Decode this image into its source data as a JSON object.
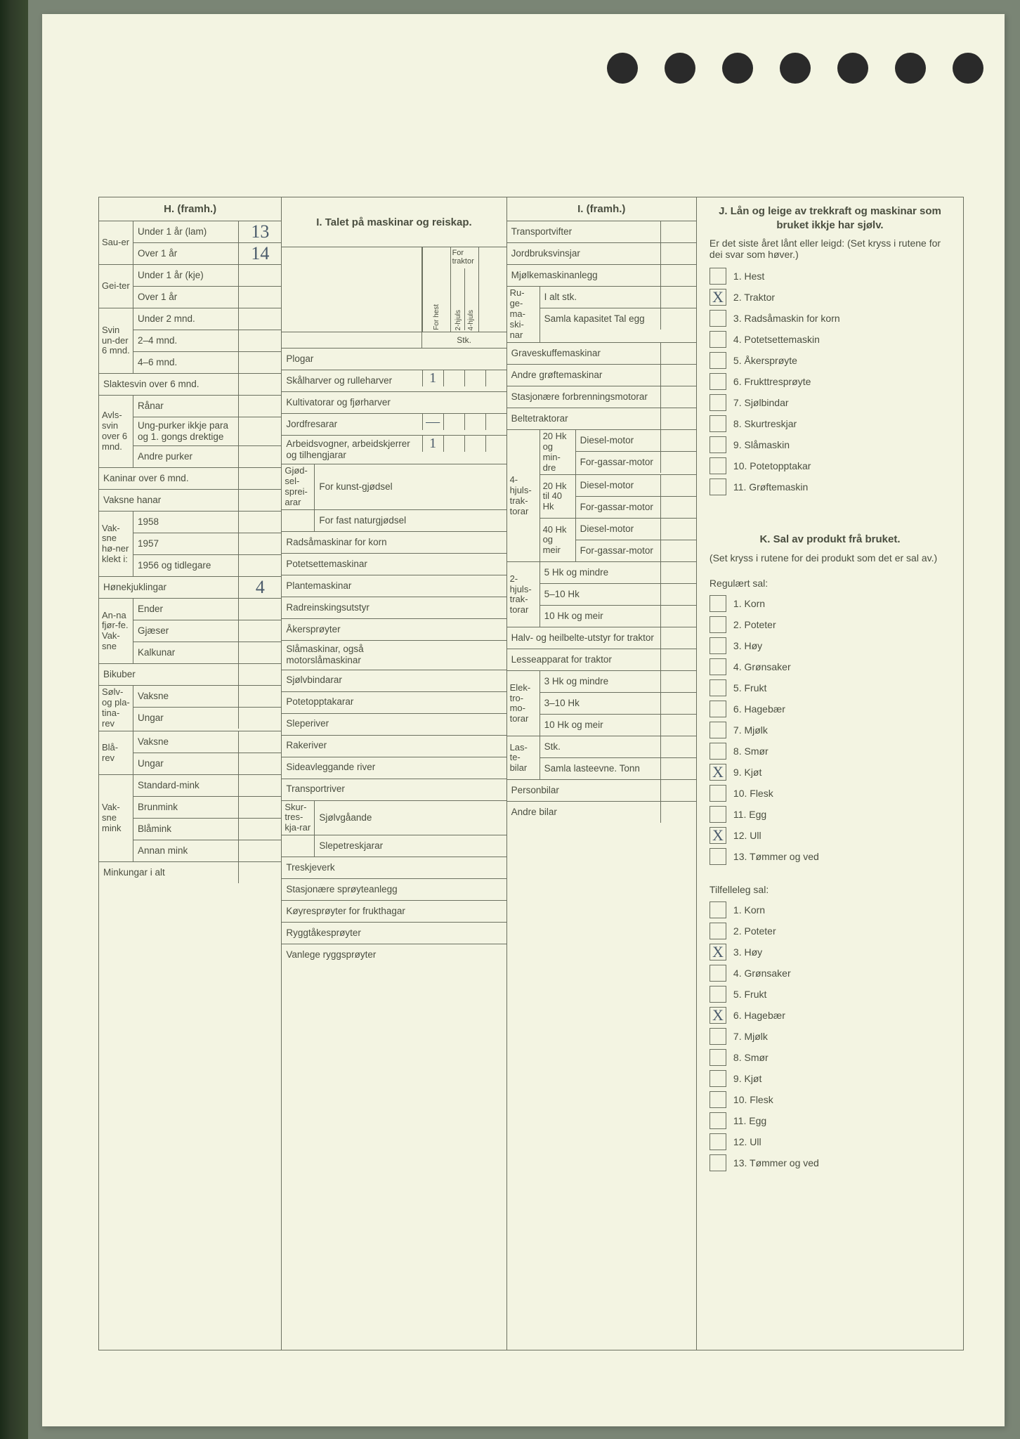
{
  "colors": {
    "paper": "#f3f4e2",
    "border": "#6b7060",
    "text": "#4a4e40",
    "handwriting": "#4a5a6a",
    "outer_bg": "#7a8575"
  },
  "H": {
    "header": "H. (framh.)",
    "groups": [
      {
        "side": "Sau-er",
        "rows": [
          {
            "label": "Under 1 år (lam)",
            "value": "13"
          },
          {
            "label": "Over 1 år",
            "value": "14"
          }
        ]
      },
      {
        "side": "Gei-ter",
        "rows": [
          {
            "label": "Under 1 år (kje)",
            "value": ""
          },
          {
            "label": "Over 1 år",
            "value": ""
          }
        ]
      },
      {
        "side": "Svin un-der 6 mnd.",
        "rows": [
          {
            "label": "Under 2 mnd.",
            "value": ""
          },
          {
            "label": "2–4 mnd.",
            "value": ""
          },
          {
            "label": "4–6 mnd.",
            "value": ""
          }
        ]
      },
      {
        "side": "",
        "rows": [
          {
            "label": "Slaktesvin over 6 mnd.",
            "value": "",
            "full": true
          }
        ]
      },
      {
        "side": "Avls-svin over 6 mnd.",
        "rows": [
          {
            "label": "Rånar",
            "value": ""
          },
          {
            "label": "Ung-purker ikkje para og 1. gongs drektige",
            "value": ""
          },
          {
            "label": "Andre purker",
            "value": ""
          }
        ]
      },
      {
        "side": "",
        "rows": [
          {
            "label": "Kaninar over 6 mnd.",
            "value": "",
            "full": true
          },
          {
            "label": "Vaksne hanar",
            "value": "",
            "full": true
          }
        ]
      },
      {
        "side": "Vak-sne hø-ner klekt i:",
        "rows": [
          {
            "label": "1958",
            "value": ""
          },
          {
            "label": "1957",
            "value": ""
          },
          {
            "label": "1956 og tidlegare",
            "value": ""
          }
        ]
      },
      {
        "side": "",
        "rows": [
          {
            "label": "Hønekjuklingar",
            "value": "4",
            "full": true
          }
        ]
      },
      {
        "side": "An-na fjør-fe. Vak-sne",
        "rows": [
          {
            "label": "Ender",
            "value": ""
          },
          {
            "label": "Gjæser",
            "value": ""
          },
          {
            "label": "Kalkunar",
            "value": ""
          }
        ]
      },
      {
        "side": "",
        "rows": [
          {
            "label": "Bikuber",
            "value": "",
            "full": true
          }
        ]
      },
      {
        "side": "Sølv- og pla-tina-rev",
        "rows": [
          {
            "label": "Vaksne",
            "value": ""
          },
          {
            "label": "Ungar",
            "value": ""
          }
        ]
      },
      {
        "side": "Blå-rev",
        "rows": [
          {
            "label": "Vaksne",
            "value": ""
          },
          {
            "label": "Ungar",
            "value": ""
          }
        ]
      },
      {
        "side": "Vak-sne mink",
        "rows": [
          {
            "label": "Standard-mink",
            "value": ""
          },
          {
            "label": "Brunmink",
            "value": ""
          },
          {
            "label": "Blåmink",
            "value": ""
          },
          {
            "label": "Annan mink",
            "value": ""
          }
        ]
      },
      {
        "side": "",
        "rows": [
          {
            "label": "Minkungar i alt",
            "value": "",
            "full": true
          }
        ]
      }
    ]
  },
  "I": {
    "header": "I. Talet på maskinar og reiskap.",
    "col_headers": {
      "group": "For traktor",
      "c1": "For hest",
      "c2": "2-hjuls",
      "c3": "4-hjuls"
    },
    "stk_label": "Stk.",
    "rows": [
      {
        "label": "Plogar",
        "v": [
          "",
          "",
          "",
          ""
        ]
      },
      {
        "label": "Skålharver og rulleharver",
        "v": [
          "1",
          "",
          "",
          ""
        ]
      },
      {
        "label": "Kultivatorar og fjørharver",
        "v": [
          "",
          "",
          "",
          ""
        ]
      },
      {
        "label": "Jordfresarar",
        "v": [
          "—",
          "",
          "",
          ""
        ]
      },
      {
        "label": "Arbeidsvogner, arbeidskjerrer og tilhengjarar",
        "v": [
          "1",
          "",
          "",
          ""
        ]
      },
      {
        "side": "Gjød-sel-sprei-arar",
        "label": "For kunst-gjødsel",
        "v": [
          "",
          "",
          "",
          ""
        ]
      },
      {
        "label": "For fast naturgjødsel",
        "v": [
          "",
          "",
          "",
          ""
        ],
        "cont": true
      },
      {
        "label": "Radsåmaskinar for korn",
        "v": [
          "",
          "",
          "",
          ""
        ]
      },
      {
        "label": "Potetsettemaskinar",
        "v": [
          "",
          "",
          "",
          ""
        ]
      },
      {
        "label": "Plantemaskinar",
        "v": [
          "",
          "",
          "",
          ""
        ]
      },
      {
        "label": "Radreinskingsutstyr",
        "v": [
          "",
          "",
          "",
          ""
        ]
      },
      {
        "label": "Åkersprøyter",
        "v": [
          "",
          "",
          "",
          ""
        ]
      },
      {
        "label": "Slåmaskinar, også motorslåmaskinar",
        "v": [
          "",
          "",
          "",
          ""
        ]
      },
      {
        "label": "Sjølvbindarar",
        "v": [
          "",
          "",
          "",
          ""
        ]
      },
      {
        "label": "Potetopptakarar",
        "v": [
          "",
          "",
          "",
          ""
        ]
      },
      {
        "label": "Sleperiver",
        "v": [
          "",
          "",
          "",
          ""
        ]
      },
      {
        "label": "Rakeriver",
        "v": [
          "",
          "",
          "",
          ""
        ]
      },
      {
        "label": "Sideavleggande river",
        "v": [
          "",
          "",
          "",
          ""
        ]
      },
      {
        "label": "Transportriver",
        "v": [
          "",
          "",
          "",
          ""
        ]
      },
      {
        "side": "Skur-tres-kja-rar",
        "label": "Sjølvgåande",
        "v": [
          "",
          "",
          "",
          ""
        ]
      },
      {
        "label": "Slepetreskjarar",
        "v": [
          "",
          "",
          "",
          ""
        ],
        "cont": true
      },
      {
        "label": "Treskjeverk",
        "v": [
          "",
          "",
          "",
          ""
        ]
      },
      {
        "label": "Stasjonære sprøyteanlegg",
        "v": [
          "",
          "",
          "",
          ""
        ]
      },
      {
        "label": "Køyresprøyter for frukthagar",
        "v": [
          "",
          "",
          "",
          ""
        ]
      },
      {
        "label": "Ryggtåkesprøyter",
        "v": [
          "",
          "",
          "",
          ""
        ]
      },
      {
        "label": "Vanlege ryggsprøyter",
        "v": [
          "",
          "",
          "",
          ""
        ]
      }
    ]
  },
  "I2": {
    "header": "I. (framh.)",
    "simple": [
      {
        "label": "Transportvifter",
        "v": ""
      },
      {
        "label": "Jordbruksvinsjar",
        "v": ""
      },
      {
        "label": "Mjølkemaskinanlegg",
        "v": ""
      }
    ],
    "ruge": {
      "side": "Ru-ge-ma-ski-nar",
      "rows": [
        {
          "label": "I alt stk.",
          "v": ""
        },
        {
          "label": "Samla kapasitet Tal egg",
          "v": ""
        }
      ]
    },
    "mid": [
      {
        "label": "Graveskuffemaskinar",
        "v": ""
      },
      {
        "label": "Andre grøftemaskinar",
        "v": ""
      },
      {
        "label": "Stasjonære forbrenningsmotorar",
        "v": ""
      },
      {
        "label": "Beltetraktorar",
        "v": ""
      }
    ],
    "traktor4": {
      "side": "4-hjuls-trak-torar",
      "groups": [
        {
          "sub": "20 Hk og min-dre",
          "rows": [
            "Diesel-motor",
            "For-gassar-motor"
          ]
        },
        {
          "sub": "20 Hk til 40 Hk",
          "rows": [
            "Diesel-motor",
            "For-gassar-motor"
          ]
        },
        {
          "sub": "40 Hk og meir",
          "rows": [
            "Diesel-motor",
            "For-gassar-motor"
          ]
        }
      ]
    },
    "traktor2": {
      "side": "2-hjuls-trak-torar",
      "rows": [
        "5 Hk og mindre",
        "5–10 Hk",
        "10 Hk og meir"
      ]
    },
    "bottom": [
      {
        "label": "Halv- og heilbelte-utstyr for traktor",
        "v": ""
      },
      {
        "label": "Lesseapparat for traktor",
        "v": ""
      }
    ],
    "elektro": {
      "side": "Elek-tro-mo-torar",
      "rows": [
        "3 Hk og mindre",
        "3–10 Hk",
        "10 Hk og meir"
      ]
    },
    "laste": {
      "side": "Las-te-bilar",
      "rows": [
        "Stk.",
        "Samla lasteevne. Tonn"
      ]
    },
    "last": [
      {
        "label": "Personbilar",
        "v": ""
      },
      {
        "label": "Andre bilar",
        "v": ""
      }
    ]
  },
  "J": {
    "title": "J. Lån og leige av trekkraft og maskinar som bruket ikkje har sjølv.",
    "sub": "Er det siste året lånt eller leigd: (Set kryss i rutene for dei svar som høver.)",
    "items": [
      {
        "n": "1.",
        "label": "Hest",
        "x": false
      },
      {
        "n": "2.",
        "label": "Traktor",
        "x": true
      },
      {
        "n": "3.",
        "label": "Radsåmaskin for korn",
        "x": false
      },
      {
        "n": "4.",
        "label": "Potetsettemaskin",
        "x": false
      },
      {
        "n": "5.",
        "label": "Åkersprøyte",
        "x": false
      },
      {
        "n": "6.",
        "label": "Frukttresprøyte",
        "x": false
      },
      {
        "n": "7.",
        "label": "Sjølbindar",
        "x": false
      },
      {
        "n": "8.",
        "label": "Skurtreskjar",
        "x": false
      },
      {
        "n": "9.",
        "label": "Slåmaskin",
        "x": false
      },
      {
        "n": "10.",
        "label": "Potetopptakar",
        "x": false
      },
      {
        "n": "11.",
        "label": "Grøftemaskin",
        "x": false
      }
    ]
  },
  "K": {
    "title": "K. Sal av produkt frå bruket.",
    "sub": "(Set kryss i rutene for dei produkt som det er sal av.)",
    "reg_label": "Regulært sal:",
    "reg": [
      {
        "n": "1.",
        "label": "Korn",
        "x": false
      },
      {
        "n": "2.",
        "label": "Poteter",
        "x": false
      },
      {
        "n": "3.",
        "label": "Høy",
        "x": false
      },
      {
        "n": "4.",
        "label": "Grønsaker",
        "x": false
      },
      {
        "n": "5.",
        "label": "Frukt",
        "x": false
      },
      {
        "n": "6.",
        "label": "Hagebær",
        "x": false
      },
      {
        "n": "7.",
        "label": "Mjølk",
        "x": false
      },
      {
        "n": "8.",
        "label": "Smør",
        "x": false
      },
      {
        "n": "9.",
        "label": "Kjøt",
        "x": true
      },
      {
        "n": "10.",
        "label": "Flesk",
        "x": false
      },
      {
        "n": "11.",
        "label": "Egg",
        "x": false
      },
      {
        "n": "12.",
        "label": "Ull",
        "x": true
      },
      {
        "n": "13.",
        "label": "Tømmer og ved",
        "x": false
      }
    ],
    "tilf_label": "Tilfelleleg sal:",
    "tilf": [
      {
        "n": "1.",
        "label": "Korn",
        "x": false
      },
      {
        "n": "2.",
        "label": "Poteter",
        "x": false
      },
      {
        "n": "3.",
        "label": "Høy",
        "x": true
      },
      {
        "n": "4.",
        "label": "Grønsaker",
        "x": false
      },
      {
        "n": "5.",
        "label": "Frukt",
        "x": false
      },
      {
        "n": "6.",
        "label": "Hagebær",
        "x": true
      },
      {
        "n": "7.",
        "label": "Mjølk",
        "x": false
      },
      {
        "n": "8.",
        "label": "Smør",
        "x": false
      },
      {
        "n": "9.",
        "label": "Kjøt",
        "x": false
      },
      {
        "n": "10.",
        "label": "Flesk",
        "x": false
      },
      {
        "n": "11.",
        "label": "Egg",
        "x": false
      },
      {
        "n": "12.",
        "label": "Ull",
        "x": false
      },
      {
        "n": "13.",
        "label": "Tømmer og ved",
        "x": false
      }
    ]
  }
}
